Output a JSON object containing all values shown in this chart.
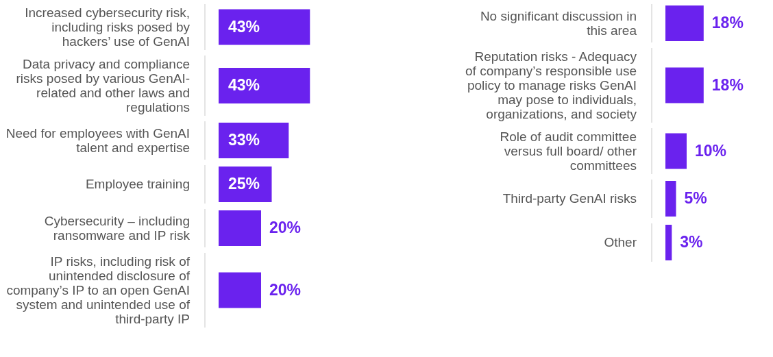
{
  "chart_data": [
    {
      "type": "bar",
      "orientation": "horizontal",
      "color": "#6a22ee",
      "categories": [
        "Increased cybersecurity risk, including risks posed by hackers’ use of GenAI",
        "Data privacy and compliance risks posed by various GenAI-related and other laws and regulations",
        "Need for employees with GenAI talent and expertise",
        "Employee training",
        "Cybersecurity – including ransomware and IP risk",
        "IP risks, including risk of unintended disclosure of company’s IP to an open GenAI system and unintended use of third-party IP"
      ],
      "values": [
        43,
        43,
        33,
        25,
        20,
        20
      ],
      "value_labels": [
        "43%",
        "43%",
        "33%",
        "25%",
        "20%",
        "20%"
      ]
    },
    {
      "type": "bar",
      "orientation": "horizontal",
      "color": "#6a22ee",
      "categories": [
        "No significant discussion in this area",
        "Reputation risks - Adequacy of company’s responsible use policy to manage risks GenAI may pose to individuals, organizations, and society",
        "Role of audit committee versus full board/ other committees",
        "Third-party GenAI risks",
        "Other"
      ],
      "values": [
        18,
        18,
        10,
        5,
        3
      ],
      "value_labels": [
        "18%",
        "18%",
        "10%",
        "5%",
        "3%"
      ]
    }
  ]
}
